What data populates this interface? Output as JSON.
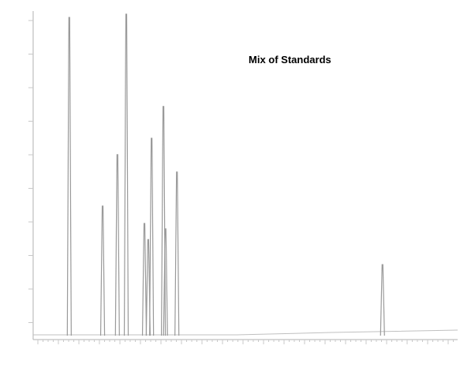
{
  "chart_data": {
    "type": "peaks",
    "title": "Mix of Standards",
    "x": [
      8.0,
      15.9,
      19.4,
      21.5,
      25.8,
      26.7,
      27.5,
      30.3,
      30.8,
      33.5,
      82.2
    ],
    "values": [
      99,
      40.3,
      56.3,
      100,
      34.9,
      29.9,
      61.4,
      71.3,
      33.2,
      50.9,
      22.1
    ],
    "color": "#9a9a9a",
    "xlim": [
      0,
      100
    ],
    "ylim": [
      0,
      100
    ]
  }
}
